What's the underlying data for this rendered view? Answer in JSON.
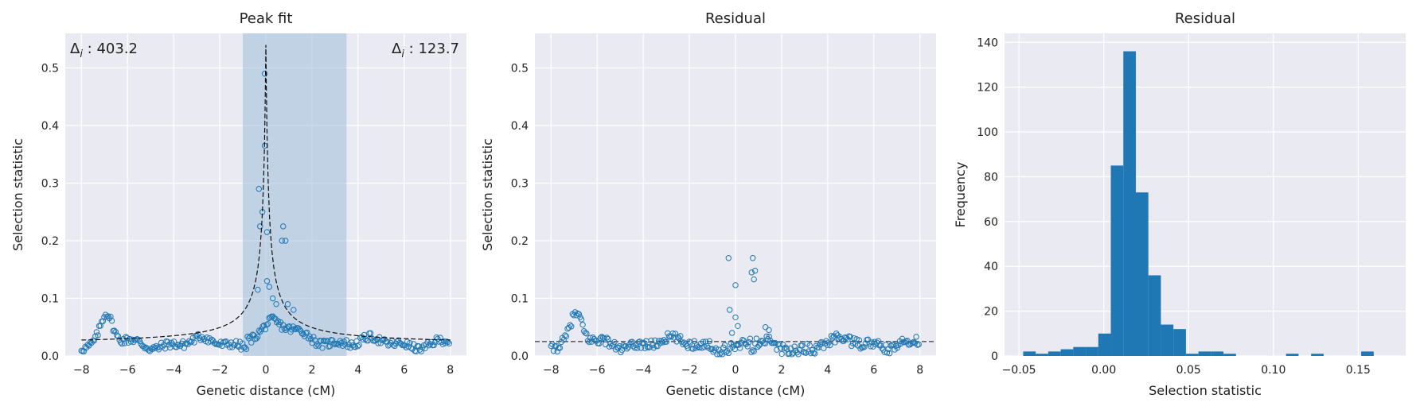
{
  "colors": {
    "background": "#ffffff",
    "plot_bg": "#eaeaf2",
    "grid": "#ffffff",
    "accent": "#1f77b4",
    "shade": "#9ebddb",
    "fit_line": "#111111"
  },
  "chart_data": [
    {
      "type": "scatter",
      "title": "Peak fit",
      "xlabel": "Genetic distance (cM)",
      "ylabel": "Selection statistic",
      "xlim": [
        -8.7,
        8.7
      ],
      "ylim": [
        0,
        0.56
      ],
      "xticks": [
        -8,
        -6,
        -4,
        -2,
        0,
        2,
        4,
        6,
        8
      ],
      "xtick_labels": [
        "−8",
        "−6",
        "−4",
        "−2",
        "0",
        "2",
        "4",
        "6",
        "8"
      ],
      "yticks": [
        0.0,
        0.1,
        0.2,
        0.3,
        0.4,
        0.5
      ],
      "ytick_labels": [
        "0.0",
        "0.1",
        "0.2",
        "0.3",
        "0.4",
        "0.5"
      ],
      "grid": true,
      "shaded_region": [
        -1.0,
        3.5
      ],
      "annotation_left": "403.2",
      "annotation_right": "123.7",
      "annotation_symbol": "Δ",
      "annotation_subscript": "i",
      "fit_curve": {
        "style": "dashed",
        "baseline": 0.02,
        "peak": 0.54,
        "center": 0.0,
        "width": 0.12
      },
      "outliers": [
        {
          "x": -0.05,
          "y": 0.49
        },
        {
          "x": -0.05,
          "y": 0.365
        },
        {
          "x": -0.3,
          "y": 0.29
        },
        {
          "x": 0.05,
          "y": 0.215
        },
        {
          "x": -0.25,
          "y": 0.225
        },
        {
          "x": -0.15,
          "y": 0.25
        },
        {
          "x": 0.75,
          "y": 0.225
        },
        {
          "x": 0.7,
          "y": 0.2
        },
        {
          "x": 0.85,
          "y": 0.2
        },
        {
          "x": -0.35,
          "y": 0.115
        },
        {
          "x": 0.05,
          "y": 0.13
        },
        {
          "x": 0.15,
          "y": 0.12
        },
        {
          "x": 0.3,
          "y": 0.1
        },
        {
          "x": 0.45,
          "y": 0.09
        },
        {
          "x": 0.95,
          "y": 0.09
        },
        {
          "x": 1.2,
          "y": 0.08
        }
      ]
    },
    {
      "type": "scatter",
      "title": "Residual",
      "xlabel": "Genetic distance (cM)",
      "ylabel": "Selection statistic",
      "xlim": [
        -8.7,
        8.7
      ],
      "ylim": [
        0,
        0.56
      ],
      "xticks": [
        -8,
        -6,
        -4,
        -2,
        0,
        2,
        4,
        6,
        8
      ],
      "xtick_labels": [
        "−8",
        "−6",
        "−4",
        "−2",
        "0",
        "2",
        "4",
        "6",
        "8"
      ],
      "yticks": [
        0.0,
        0.1,
        0.2,
        0.3,
        0.4,
        0.5
      ],
      "ytick_labels": [
        "0.0",
        "0.1",
        "0.2",
        "0.3",
        "0.4",
        "0.5"
      ],
      "grid": true,
      "reference_line": 0.025,
      "outliers": [
        {
          "x": -0.3,
          "y": 0.17
        },
        {
          "x": 0.0,
          "y": 0.123
        },
        {
          "x": 0.75,
          "y": 0.17
        },
        {
          "x": 0.7,
          "y": 0.145
        },
        {
          "x": 0.85,
          "y": 0.148
        },
        {
          "x": 0.8,
          "y": 0.133
        },
        {
          "x": -0.25,
          "y": 0.08
        },
        {
          "x": 0.0,
          "y": 0.067
        },
        {
          "x": -0.15,
          "y": 0.04
        },
        {
          "x": 0.1,
          "y": 0.052
        },
        {
          "x": 1.3,
          "y": 0.05
        },
        {
          "x": 1.45,
          "y": 0.045
        }
      ]
    },
    {
      "type": "bar",
      "title": "Residual",
      "xlabel": "Selection statistic",
      "ylabel": "Frequency",
      "xlim": [
        -0.0585,
        0.178
      ],
      "ylim": [
        0,
        144
      ],
      "xticks": [
        -0.05,
        0.0,
        0.05,
        0.1,
        0.15
      ],
      "xtick_labels": [
        "−0.05",
        "0.00",
        "0.05",
        "0.10",
        "0.15"
      ],
      "yticks": [
        0,
        20,
        40,
        60,
        80,
        100,
        120,
        140
      ],
      "ytick_labels": [
        "0",
        "20",
        "40",
        "60",
        "80",
        "100",
        "120",
        "140"
      ],
      "grid": true,
      "bin_start": -0.0475,
      "bin_width": 0.00738,
      "counts": [
        2,
        1,
        2,
        3,
        4,
        4,
        10,
        85,
        136,
        73,
        36,
        14,
        12,
        1,
        2,
        2,
        1,
        0,
        0,
        0,
        0,
        1,
        0,
        1,
        0,
        0,
        0,
        2,
        0,
        0
      ]
    }
  ]
}
